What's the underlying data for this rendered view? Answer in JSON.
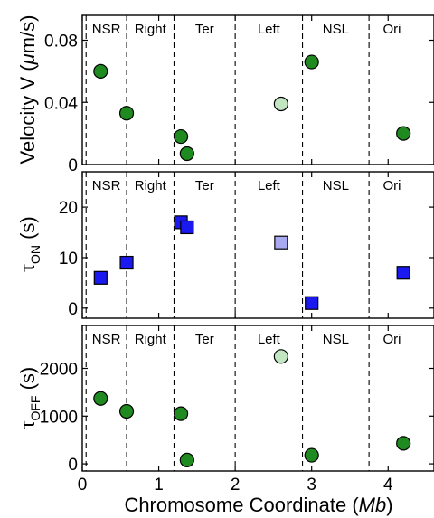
{
  "chart_data": [
    {
      "type": "scatter",
      "marker": "circle",
      "ylabel": "Velocity V (μm/s)",
      "xlim": [
        0,
        4.6
      ],
      "ylim": [
        0,
        0.096
      ],
      "yticks": [
        0,
        0.04,
        0.08
      ],
      "ytick_labels": [
        "0",
        "0.04",
        "0.08"
      ],
      "regions": [
        "NSR",
        "Right",
        "Ter",
        "Left",
        "NSL",
        "Ori"
      ],
      "region_boundaries": [
        0.05,
        0.58,
        1.2,
        2.0,
        2.88,
        3.75
      ],
      "highlight_color": "#1f8a1f",
      "pale_color": "#c2e6c2",
      "points": [
        {
          "x": 0.24,
          "y": 0.06,
          "pale": false
        },
        {
          "x": 0.58,
          "y": 0.033,
          "pale": false
        },
        {
          "x": 1.29,
          "y": 0.018,
          "pale": false
        },
        {
          "x": 1.37,
          "y": 0.007,
          "pale": false
        },
        {
          "x": 2.6,
          "y": 0.039,
          "pale": true
        },
        {
          "x": 3.0,
          "y": 0.066,
          "pale": false
        },
        {
          "x": 4.2,
          "y": 0.02,
          "pale": false
        }
      ]
    },
    {
      "type": "scatter",
      "marker": "square",
      "ylabel": "τON (s)",
      "xlim": [
        0,
        4.6
      ],
      "ylim": [
        -2,
        27
      ],
      "yticks": [
        0,
        10,
        20
      ],
      "ytick_labels": [
        "0",
        "10",
        "20"
      ],
      "regions": [
        "NSR",
        "Right",
        "Ter",
        "Left",
        "NSL",
        "Ori"
      ],
      "region_boundaries": [
        0.05,
        0.58,
        1.2,
        2.0,
        2.88,
        3.75
      ],
      "highlight_color": "#1a1af0",
      "pale_color": "#a9a9f2",
      "points": [
        {
          "x": 0.24,
          "y": 6.0,
          "pale": false
        },
        {
          "x": 0.58,
          "y": 9.0,
          "pale": false
        },
        {
          "x": 1.29,
          "y": 17.0,
          "pale": false
        },
        {
          "x": 1.37,
          "y": 16.0,
          "pale": false
        },
        {
          "x": 2.6,
          "y": 13.0,
          "pale": true
        },
        {
          "x": 3.0,
          "y": 1.0,
          "pale": false
        },
        {
          "x": 4.2,
          "y": 7.0,
          "pale": false
        }
      ]
    },
    {
      "type": "scatter",
      "marker": "circle",
      "ylabel": "τOFF (s)",
      "xlabel": "Chromosome Coordinate (Mb)",
      "xlim": [
        0,
        4.6
      ],
      "ylim": [
        -150,
        2900
      ],
      "yticks": [
        0,
        1000,
        2000
      ],
      "ytick_labels": [
        "0",
        "1000",
        "2000"
      ],
      "xticks": [
        0,
        1,
        2,
        3,
        4
      ],
      "xtick_labels": [
        "0",
        "1",
        "2",
        "3",
        "4"
      ],
      "regions": [
        "NSR",
        "Right",
        "Ter",
        "Left",
        "NSL",
        "Ori"
      ],
      "region_boundaries": [
        0.05,
        0.58,
        1.2,
        2.0,
        2.88,
        3.75
      ],
      "highlight_color": "#1f8a1f",
      "pale_color": "#c2e6c2",
      "points": [
        {
          "x": 0.24,
          "y": 1370,
          "pale": false
        },
        {
          "x": 0.58,
          "y": 1100,
          "pale": false
        },
        {
          "x": 1.29,
          "y": 1050,
          "pale": false
        },
        {
          "x": 1.37,
          "y": 80,
          "pale": false
        },
        {
          "x": 2.6,
          "y": 2250,
          "pale": true
        },
        {
          "x": 3.0,
          "y": 180,
          "pale": false
        },
        {
          "x": 4.2,
          "y": 430,
          "pale": false
        }
      ]
    }
  ]
}
